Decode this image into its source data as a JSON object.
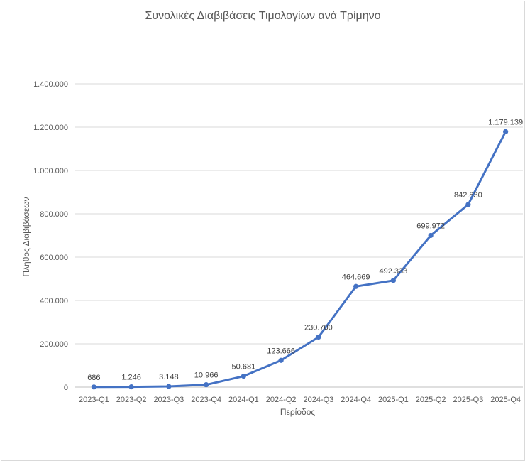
{
  "chart_data": {
    "type": "line",
    "title": "Συνολικές Διαβιβάσεις Τιμολογίων ανά Τρίμηνο",
    "xlabel": "Περίοδος",
    "ylabel": "Πλήθος Διαβιβάσεων",
    "categories": [
      "2023-Q1",
      "2023-Q2",
      "2023-Q3",
      "2023-Q4",
      "2024-Q1",
      "2024-Q2",
      "2024-Q3",
      "2024-Q4",
      "2025-Q1",
      "2025-Q2",
      "2025-Q3",
      "2025-Q4"
    ],
    "series": [
      {
        "values": [
          686,
          1246,
          3148,
          10966,
          50681,
          123666,
          230700,
          464669,
          492333,
          699972,
          842830,
          1179139
        ],
        "labels": [
          "686",
          "1.246",
          "3.148",
          "10.966",
          "50.681",
          "123.666",
          "230.700",
          "464.669",
          "492.333",
          "699.972",
          "842.830",
          "1.179.139"
        ],
        "color": "#4472c4"
      }
    ],
    "ylim": [
      0,
      1400000
    ],
    "yticks": [
      0,
      200000,
      400000,
      600000,
      800000,
      1000000,
      1200000,
      1400000
    ],
    "ytick_labels": [
      "0",
      "200.000",
      "400.000",
      "600.000",
      "800.000",
      "1.000.000",
      "1.200.000",
      "1.400.000"
    ],
    "grid": true,
    "legend": "none"
  }
}
